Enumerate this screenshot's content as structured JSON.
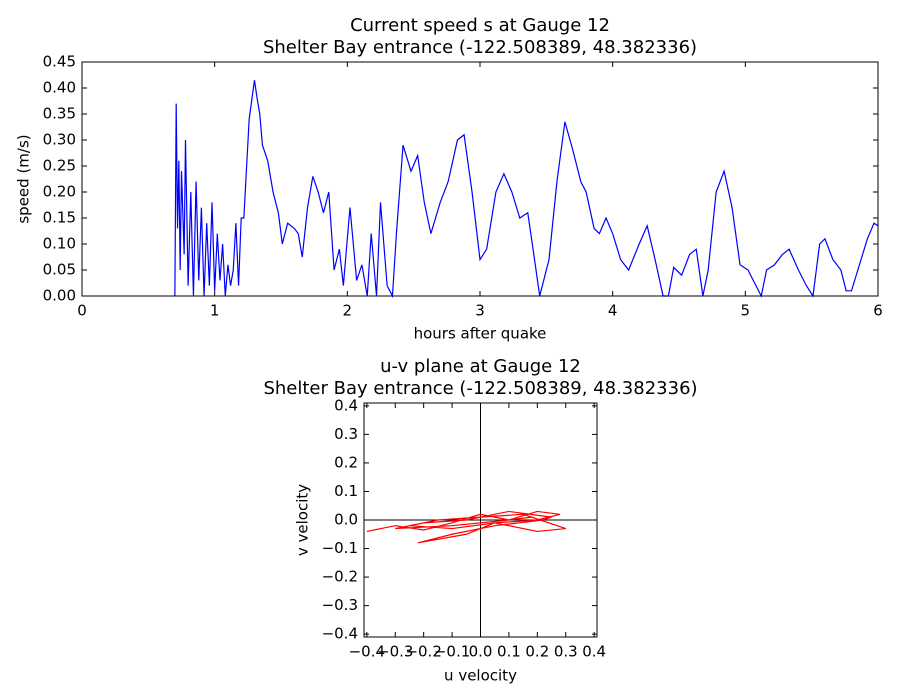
{
  "chart_data": [
    {
      "type": "line",
      "title": "Current speed s at Gauge 12",
      "subtitle": "Shelter Bay entrance  (-122.508389, 48.382336)",
      "x_label": "hours after quake",
      "y_label": "speed (m/s)",
      "color": "#0000ff",
      "xlim": [
        0,
        6
      ],
      "xticks": [
        0,
        1,
        2,
        3,
        4,
        5,
        6
      ],
      "ylim": [
        0,
        0.45
      ],
      "yticks": [
        {
          "value": 0,
          "label": "0.00"
        },
        0.05,
        {
          "value": 0.1,
          "label": "0.10"
        },
        0.15,
        {
          "value": 0.2,
          "label": "0.20"
        },
        0.25,
        {
          "value": 0.3,
          "label": "0.30"
        },
        0.35,
        {
          "value": 0.4,
          "label": "0.40"
        },
        0.45
      ],
      "x": [
        0.7,
        0.71,
        0.72,
        0.73,
        0.74,
        0.75,
        0.77,
        0.78,
        0.8,
        0.82,
        0.84,
        0.86,
        0.88,
        0.9,
        0.92,
        0.94,
        0.96,
        0.98,
        1.0,
        1.02,
        1.04,
        1.06,
        1.08,
        1.1,
        1.12,
        1.14,
        1.16,
        1.18,
        1.2,
        1.22,
        1.26,
        1.3,
        1.32,
        1.34,
        1.36,
        1.4,
        1.44,
        1.48,
        1.51,
        1.55,
        1.6,
        1.63,
        1.66,
        1.7,
        1.74,
        1.78,
        1.82,
        1.86,
        1.9,
        1.94,
        1.97,
        2.02,
        2.07,
        2.11,
        2.15,
        2.18,
        2.22,
        2.25,
        2.3,
        2.34,
        2.37,
        2.42,
        2.48,
        2.53,
        2.58,
        2.63,
        2.7,
        2.76,
        2.83,
        2.88,
        2.94,
        3.0,
        3.05,
        3.12,
        3.18,
        3.24,
        3.3,
        3.36,
        3.4,
        3.45,
        3.52,
        3.58,
        3.64,
        3.7,
        3.76,
        3.8,
        3.86,
        3.9,
        3.95,
        4.0,
        4.06,
        4.12,
        4.2,
        4.26,
        4.32,
        4.38,
        4.42,
        4.46,
        4.52,
        4.58,
        4.63,
        4.68,
        4.72,
        4.78,
        4.84,
        4.9,
        4.96,
        5.02,
        5.08,
        5.12,
        5.16,
        5.22,
        5.28,
        5.33,
        5.4,
        5.46,
        5.51,
        5.56,
        5.6,
        5.66,
        5.72,
        5.76,
        5.8,
        5.86,
        5.92,
        5.97,
        6.0
      ],
      "values": [
        0,
        0.37,
        0.13,
        0.26,
        0.05,
        0.24,
        0.08,
        0.3,
        0.02,
        0.2,
        0,
        0.22,
        0.03,
        0.17,
        0,
        0.14,
        0.02,
        0.18,
        0.01,
        0.12,
        0.03,
        0.1,
        0,
        0.06,
        0.02,
        0.05,
        0.14,
        0.02,
        0.15,
        0.15,
        0.34,
        0.415,
        0.38,
        0.35,
        0.29,
        0.26,
        0.2,
        0.16,
        0.1,
        0.14,
        0.13,
        0.12,
        0.075,
        0.17,
        0.23,
        0.2,
        0.16,
        0.2,
        0.05,
        0.09,
        0.02,
        0.17,
        0.03,
        0.06,
        0,
        0.12,
        0,
        0.18,
        0.02,
        0,
        0.12,
        0.29,
        0.24,
        0.27,
        0.18,
        0.12,
        0.18,
        0.22,
        0.3,
        0.31,
        0.2,
        0.07,
        0.09,
        0.2,
        0.235,
        0.2,
        0.15,
        0.16,
        0.09,
        0,
        0.07,
        0.22,
        0.335,
        0.28,
        0.22,
        0.2,
        0.13,
        0.12,
        0.15,
        0.12,
        0.07,
        0.05,
        0.1,
        0.135,
        0.07,
        0,
        0,
        0.055,
        0.04,
        0.08,
        0.09,
        0,
        0.05,
        0.2,
        0.24,
        0.17,
        0.06,
        0.05,
        0.02,
        0,
        0.05,
        0.06,
        0.08,
        0.09,
        0.05,
        0.02,
        0,
        0.1,
        0.11,
        0.07,
        0.05,
        0.01,
        0.01,
        0.06,
        0.11,
        0.14,
        0.135
      ]
    },
    {
      "type": "line",
      "title": "u-v plane at Gauge 12",
      "subtitle": "Shelter Bay entrance  (-122.508389, 48.382336)",
      "x_label": "u velocity",
      "y_label": "v velocity",
      "color": "#ff0000",
      "axhline": 0,
      "axvline": 0,
      "xlim": [
        -0.41,
        0.41
      ],
      "xticks": [
        {
          "value": -0.4,
          "label": "−0.4"
        },
        {
          "value": -0.3,
          "label": "−0.3"
        },
        {
          "value": -0.2,
          "label": "−0.2"
        },
        {
          "value": -0.1,
          "label": "−0.1"
        },
        {
          "value": 0,
          "label": "0.0"
        },
        0.1,
        0.2,
        0.3,
        0.4
      ],
      "ylim": [
        -0.41,
        0.41
      ],
      "yticks": [
        {
          "value": -0.4,
          "label": "−0.4"
        },
        {
          "value": -0.3,
          "label": "−0.3"
        },
        {
          "value": -0.2,
          "label": "−0.2"
        },
        {
          "value": -0.1,
          "label": "−0.1"
        },
        {
          "value": 0,
          "label": "0.0"
        },
        0.1,
        0.2,
        0.3,
        0.4
      ],
      "x": [
        -0.4,
        -0.3,
        -0.2,
        -0.1,
        0,
        0.1,
        0.2,
        0.28,
        0.2,
        0.05,
        -0.1,
        -0.25,
        -0.15,
        0,
        0.15,
        0.3,
        0.2,
        0.05,
        -0.05,
        -0.22,
        -0.1,
        0.05,
        0.22,
        0.25,
        0.1,
        -0.05,
        -0.2,
        -0.3,
        -0.1,
        0.1,
        0.18
      ],
      "values": [
        -0.04,
        -0.02,
        -0.035,
        -0.01,
        0.02,
        0,
        0.03,
        0.02,
        0,
        -0.01,
        -0.03,
        -0.02,
        0,
        0.01,
        0.02,
        -0.03,
        -0.04,
        -0.01,
        -0.05,
        -0.08,
        -0.05,
        -0.02,
        0,
        0.01,
        0.03,
        0,
        -0.01,
        -0.03,
        -0.02,
        0,
        0.01
      ]
    }
  ]
}
